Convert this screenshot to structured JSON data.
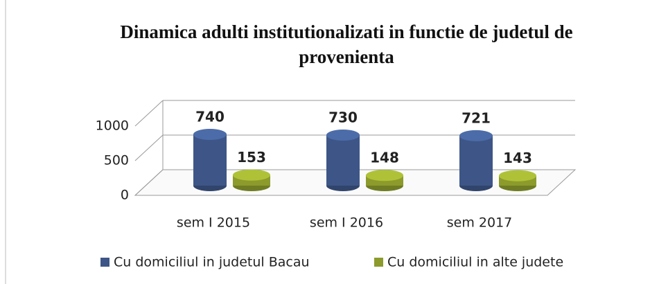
{
  "chart_data": {
    "type": "bar",
    "title": "Dinamica adulti institutionalizati in functie de judetul de provenienta",
    "categories": [
      "sem I 2015",
      "sem I 2016",
      "sem 2017"
    ],
    "series": [
      {
        "name": "Cu domiciliul in judetul Bacau",
        "color": "#3d5687",
        "values": [
          740,
          730,
          721
        ]
      },
      {
        "name": "Cu domiciliul in alte judete",
        "color": "#8c9b2c",
        "values": [
          153,
          148,
          143
        ]
      }
    ],
    "ylim": [
      0,
      1000
    ],
    "yticks": [
      0,
      500,
      1000
    ],
    "grid": true
  }
}
